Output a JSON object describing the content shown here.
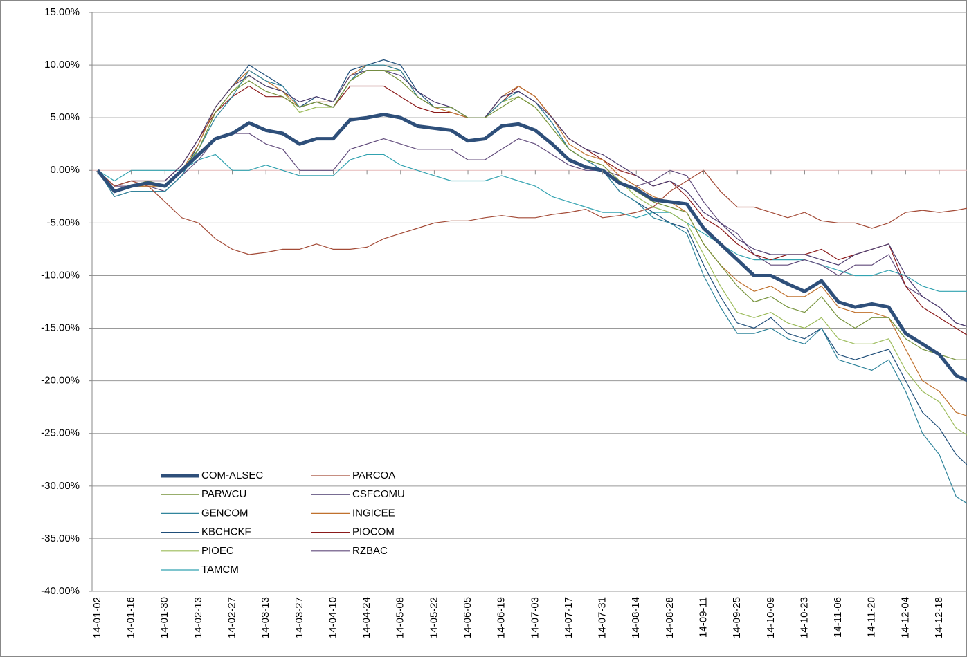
{
  "chart_data": {
    "type": "line",
    "categories": [
      "14-01-02",
      null,
      "14-01-16",
      null,
      "14-01-30",
      null,
      "14-02-13",
      null,
      "14-02-27",
      null,
      "14-03-13",
      null,
      "14-03-27",
      null,
      "14-04-10",
      null,
      "14-04-24",
      null,
      "14-05-08",
      null,
      "14-05-22",
      null,
      "14-06-05",
      null,
      "14-06-19",
      null,
      "14-07-03",
      null,
      "14-07-17",
      null,
      "14-07-31",
      null,
      "14-08-14",
      null,
      "14-08-28",
      null,
      "14-09-11",
      null,
      "14-09-25",
      null,
      "14-10-09",
      null,
      "14-10-23",
      null,
      "14-11-06",
      null,
      "14-11-20",
      null,
      "14-12-04",
      null,
      "14-12-18",
      null,
      null
    ],
    "ylim": [
      -40,
      15
    ],
    "yticks": [
      {
        "value": 15,
        "label": "15.00%"
      },
      {
        "value": 10,
        "label": "10.00%"
      },
      {
        "value": 5,
        "label": "5.00%"
      },
      {
        "value": 0,
        "label": "0.00%"
      },
      {
        "value": -5,
        "label": "-5.00%"
      },
      {
        "value": -10,
        "label": "-10.00%"
      },
      {
        "value": -15,
        "label": "-15.00%"
      },
      {
        "value": -20,
        "label": "-20.00%"
      },
      {
        "value": -25,
        "label": "-25.00%"
      },
      {
        "value": -30,
        "label": "-30.00%"
      },
      {
        "value": -35,
        "label": "-35.00%"
      },
      {
        "value": -40,
        "label": "-40.00%"
      }
    ],
    "grid": true,
    "legend": "lower left",
    "series": [
      {
        "name": "COM-ALSEC",
        "color": "#2e4f7a",
        "width": 5,
        "values": [
          0,
          -2,
          -1.5,
          -1.2,
          -1.5,
          0,
          1.5,
          3,
          3.5,
          4.5,
          3.8,
          3.5,
          2.5,
          3,
          3,
          4.8,
          5,
          5.3,
          5,
          4.2,
          4,
          3.8,
          2.8,
          3,
          4.2,
          4.4,
          3.8,
          2.5,
          1,
          0.3,
          0,
          -1.2,
          -1.8,
          -2.8,
          -3,
          -3.2,
          -5.5,
          -7,
          -8.5,
          -10,
          -10,
          -10.8,
          -11.5,
          -10.5,
          -12.5,
          -13,
          -12.7,
          -13,
          -15.5,
          -16.5,
          -17.5,
          -19.5,
          -20.2
        ]
      },
      {
        "name": "PARCOA",
        "color": "#a34a36",
        "width": 1.2,
        "values": [
          0,
          -1.5,
          -1,
          -1.5,
          -3,
          -4.5,
          -5,
          -6.5,
          -7.5,
          -8,
          -7.8,
          -7.5,
          -7.5,
          -7,
          -7.5,
          -7.5,
          -7.3,
          -6.5,
          -6,
          -5.5,
          -5,
          -4.8,
          -4.8,
          -4.5,
          -4.3,
          -4.5,
          -4.5,
          -4.2,
          -4,
          -3.7,
          -4.5,
          -4.3,
          -4,
          -3.5,
          -2,
          -1,
          0,
          -2,
          -3.5,
          -3.5,
          -4,
          -4.5,
          -4,
          -4.8,
          -5,
          -5,
          -5.5,
          -5,
          -4,
          -3.8,
          -4,
          -3.8,
          -3.5
        ]
      },
      {
        "name": "PARWCU",
        "color": "#77933c",
        "width": 1.2,
        "values": [
          0,
          -2,
          -1.5,
          -1,
          -1.5,
          0,
          2,
          5.5,
          7.5,
          8.5,
          7.5,
          7,
          6,
          6.5,
          6,
          8.5,
          9.5,
          9.5,
          8.5,
          7,
          6,
          6,
          5,
          5,
          6,
          7,
          6,
          4,
          2,
          1,
          0.5,
          -1,
          -2,
          -3,
          -3.5,
          -4,
          -7,
          -9,
          -11,
          -12.5,
          -12,
          -13,
          -13.5,
          -12,
          -14,
          -15,
          -14,
          -14,
          -16,
          -17,
          -17.5,
          -18,
          -18
        ]
      },
      {
        "name": "CSFCOMU",
        "color": "#4b3b6e",
        "width": 1.2,
        "values": [
          0,
          -1.5,
          -1,
          -1,
          -1,
          0.5,
          3,
          6,
          8,
          9,
          8,
          7.5,
          6.5,
          7,
          6.5,
          9,
          9.5,
          9.5,
          9,
          7.5,
          6.5,
          6,
          5,
          5,
          7,
          7.5,
          6.5,
          5,
          3,
          2,
          1.5,
          0.5,
          -0.5,
          -1.5,
          -1,
          -2,
          -4,
          -5,
          -6.5,
          -7.5,
          -8,
          -8,
          -8,
          -8.5,
          -9,
          -8,
          -7.5,
          -7,
          -10,
          -12,
          -13,
          -14.5,
          -15
        ]
      },
      {
        "name": "GENCOM",
        "color": "#31859c",
        "width": 1.2,
        "values": [
          0,
          -2.5,
          -2,
          -2,
          -2,
          -0.5,
          2,
          5,
          7,
          9.5,
          8.5,
          8,
          6,
          6.5,
          6,
          8.5,
          10,
          10,
          9.5,
          7,
          6,
          6,
          5,
          5,
          6.5,
          7.5,
          6.5,
          4.5,
          2,
          1,
          0,
          -2,
          -3,
          -4.5,
          -5,
          -6,
          -10,
          -13,
          -15.5,
          -15.5,
          -15,
          -16,
          -16.5,
          -15,
          -18,
          -18.5,
          -19,
          -18,
          -21,
          -25,
          -27,
          -31,
          -32
        ]
      },
      {
        "name": "INGICEE",
        "color": "#c0712d",
        "width": 1.2,
        "values": [
          0,
          -2,
          -1.5,
          -1.5,
          -1.5,
          0,
          2.5,
          6,
          8,
          9.5,
          8.5,
          7.5,
          6,
          6.5,
          6.5,
          9,
          10,
          10,
          9.5,
          7,
          6,
          5.5,
          5,
          5,
          7,
          8,
          7,
          5,
          2.5,
          1.5,
          1,
          -0.5,
          -1.5,
          -2.5,
          -3,
          -4,
          -7,
          -9,
          -10.5,
          -11.5,
          -11,
          -12,
          -12,
          -11,
          -13,
          -13.5,
          -13.5,
          -14,
          -17,
          -20,
          -21,
          -23,
          -23.5
        ]
      },
      {
        "name": "KBCHCKF",
        "color": "#1f4e79",
        "width": 1.2,
        "values": [
          0,
          -2.5,
          -2,
          -2,
          -2,
          -0.5,
          2.5,
          6,
          8,
          10,
          9,
          8,
          6,
          7,
          6.5,
          9.5,
          10,
          10.5,
          10,
          7.5,
          6,
          6,
          5,
          5,
          7,
          7.5,
          6.5,
          4.5,
          2,
          1,
          0,
          -2,
          -3,
          -4,
          -5,
          -5.5,
          -9,
          -12,
          -14.5,
          -15,
          -14,
          -15.5,
          -16,
          -15,
          -17.5,
          -18,
          -17.5,
          -17,
          -20,
          -23,
          -24.5,
          -27,
          -28.5
        ]
      },
      {
        "name": "PIOCOM",
        "color": "#8b1a1a",
        "width": 1.2,
        "values": [
          0,
          -1.5,
          -1,
          -1,
          -1,
          0.5,
          3,
          5.5,
          7,
          8,
          7,
          7,
          6,
          6.5,
          6,
          8,
          8,
          8,
          7,
          6,
          5.5,
          5.5,
          5,
          5,
          6.5,
          8,
          7,
          5,
          3,
          2,
          1,
          0,
          -0.5,
          -1.5,
          -1,
          -2.5,
          -4.5,
          -5.5,
          -7,
          -8,
          -8.5,
          -8,
          -8,
          -7.5,
          -8.5,
          -8,
          -7.5,
          -7,
          -11,
          -13,
          -14,
          -15,
          -16
        ]
      },
      {
        "name": "PIOEC",
        "color": "#9bbb59",
        "width": 1.2,
        "values": [
          0,
          -2,
          -1.5,
          -1.5,
          -1.5,
          0,
          2,
          5.5,
          7.5,
          9,
          8,
          7.5,
          5.5,
          6,
          6,
          8.5,
          9.5,
          9.5,
          9.5,
          7,
          6,
          6,
          5,
          5,
          6.5,
          7,
          6,
          4,
          2,
          1,
          0.5,
          -1,
          -2.5,
          -3.5,
          -4,
          -5,
          -8,
          -11,
          -13.5,
          -14,
          -13.5,
          -14.5,
          -15,
          -14,
          -16,
          -16.5,
          -16.5,
          -16,
          -19,
          -21,
          -22,
          -24.5,
          -25.5
        ]
      },
      {
        "name": "RZBAC",
        "color": "#604a7b",
        "width": 1.2,
        "values": [
          0,
          -1.5,
          -1.5,
          -1.5,
          -2,
          -0.5,
          1,
          3,
          3.5,
          3.5,
          2.5,
          2,
          0,
          0,
          0,
          2,
          2.5,
          3,
          2.5,
          2,
          2,
          2,
          1,
          1,
          2,
          3,
          2.5,
          1.5,
          0.5,
          0,
          0,
          -0.5,
          -1.5,
          -1,
          0,
          -0.5,
          -3,
          -5,
          -6,
          -8,
          -9,
          -9,
          -8.5,
          -9,
          -10,
          -9,
          -9,
          -8,
          -11,
          -12,
          -13,
          -14.5,
          -15
        ]
      },
      {
        "name": "TAMCM",
        "color": "#31a2b0",
        "width": 1.2,
        "values": [
          0,
          -1,
          0,
          0,
          0,
          0,
          1,
          1.5,
          0,
          0,
          0.5,
          0,
          -0.5,
          -0.5,
          -0.5,
          1,
          1.5,
          1.5,
          0.5,
          0,
          -0.5,
          -1,
          -1,
          -1,
          -0.5,
          -1,
          -1.5,
          -2.5,
          -3,
          -3.5,
          -4,
          -4,
          -4.5,
          -4,
          -4,
          -5,
          -6,
          -7,
          -8,
          -8.5,
          -8.5,
          -8.5,
          -8.5,
          -9,
          -9.5,
          -10,
          -10,
          -9.5,
          -10,
          -11,
          -11.5,
          -11.5,
          -11.5
        ]
      }
    ]
  }
}
